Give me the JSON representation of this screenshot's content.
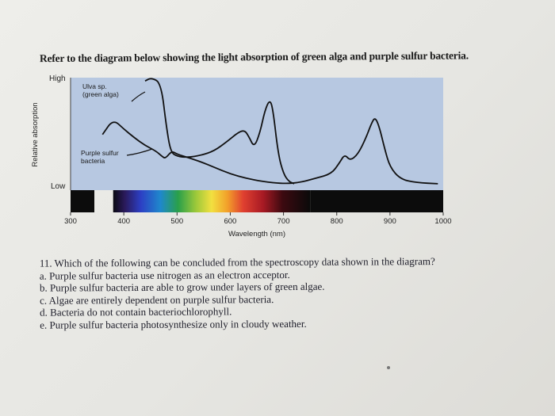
{
  "intro_text": "Refer to the diagram below showing the light absorption of green alga and purple sulfur bacteria.",
  "question": {
    "stem": "11. Which of the following can be concluded from the spectroscopy data shown in the diagram?",
    "options": [
      "a. Purple sulfur bacteria use nitrogen as an electron acceptor.",
      "b. Purple sulfur bacteria are able to grow under layers of green algae.",
      "c. Algae are entirely dependent on purple sulfur bacteria.",
      "d. Bacteria do not contain bacteriochlorophyll.",
      "e. Purple sulfur bacteria photosynthesize only in cloudy weather."
    ]
  },
  "chart_data": {
    "type": "line",
    "xlabel": "Wavelength (nm)",
    "ylabel": "Relative absorption",
    "y_high_label": "High",
    "y_low_label": "Low",
    "xlim": [
      300,
      1000
    ],
    "ylim": [
      0,
      1
    ],
    "x_ticks": [
      300,
      400,
      500,
      600,
      700,
      800,
      900,
      1000
    ],
    "x_tick_labels": [
      "300",
      "400",
      "500",
      "600",
      "700",
      "800",
      "900",
      "1000"
    ],
    "series": [
      {
        "name": "Ulva sp. (green alga)",
        "label_lines": [
          "Ulva sp.",
          "(green alga)"
        ],
        "color": "#111111",
        "points": [
          [
            440,
            0.97
          ],
          [
            452,
            1.0
          ],
          [
            470,
            0.95
          ],
          [
            480,
            0.55
          ],
          [
            488,
            0.32
          ],
          [
            500,
            0.28
          ],
          [
            520,
            0.27
          ],
          [
            545,
            0.29
          ],
          [
            570,
            0.33
          ],
          [
            595,
            0.42
          ],
          [
            615,
            0.5
          ],
          [
            627,
            0.52
          ],
          [
            635,
            0.46
          ],
          [
            645,
            0.36
          ],
          [
            656,
            0.5
          ],
          [
            665,
            0.7
          ],
          [
            674,
            0.8
          ],
          [
            680,
            0.72
          ],
          [
            690,
            0.3
          ],
          [
            700,
            0.12
          ],
          [
            710,
            0.05
          ],
          [
            720,
            0.03
          ]
        ]
      },
      {
        "name": "Purple sulfur bacteria",
        "label_lines": [
          "Purple sulfur",
          "bacteria"
        ],
        "color": "#111111",
        "points": [
          [
            360,
            0.48
          ],
          [
            380,
            0.62
          ],
          [
            400,
            0.53
          ],
          [
            420,
            0.45
          ],
          [
            440,
            0.38
          ],
          [
            460,
            0.33
          ],
          [
            472,
            0.28
          ],
          [
            478,
            0.26
          ],
          [
            490,
            0.33
          ],
          [
            500,
            0.3
          ],
          [
            520,
            0.27
          ],
          [
            545,
            0.23
          ],
          [
            570,
            0.18
          ],
          [
            600,
            0.12
          ],
          [
            630,
            0.08
          ],
          [
            660,
            0.05
          ],
          [
            700,
            0.03
          ],
          [
            730,
            0.04
          ],
          [
            760,
            0.08
          ],
          [
            790,
            0.12
          ],
          [
            805,
            0.22
          ],
          [
            815,
            0.3
          ],
          [
            825,
            0.24
          ],
          [
            840,
            0.3
          ],
          [
            855,
            0.45
          ],
          [
            865,
            0.58
          ],
          [
            872,
            0.64
          ],
          [
            880,
            0.55
          ],
          [
            890,
            0.35
          ],
          [
            900,
            0.18
          ],
          [
            920,
            0.07
          ],
          [
            950,
            0.04
          ],
          [
            990,
            0.03
          ]
        ]
      }
    ],
    "spectrum_visible_range_nm": [
      380,
      750
    ],
    "grid": false,
    "legend": "inline labels"
  }
}
